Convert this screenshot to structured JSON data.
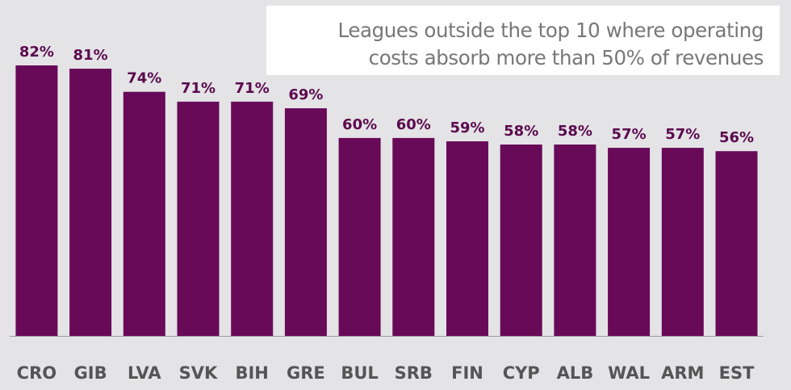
{
  "chart_data": {
    "type": "bar",
    "title": "Leagues outside the top 10 where operating costs absorb more than 50% of revenues",
    "title_lines": [
      "Leagues outside the top 10 where operating",
      "costs absorb more than 50% of revenues"
    ],
    "categories": [
      "CRO",
      "GIB",
      "LVA",
      "SVK",
      "BIH",
      "GRE",
      "BUL",
      "SRB",
      "FIN",
      "CYP",
      "ALB",
      "WAL",
      "ARM",
      "EST"
    ],
    "values": [
      82,
      81,
      74,
      71,
      71,
      69,
      60,
      60,
      59,
      58,
      58,
      57,
      57,
      56
    ],
    "value_labels": [
      "82%",
      "81%",
      "74%",
      "71%",
      "71%",
      "69%",
      "60%",
      "60%",
      "59%",
      "58%",
      "58%",
      "57%",
      "57%",
      "56%"
    ],
    "ylim": [
      0,
      82
    ],
    "grid": false,
    "xlabel": "",
    "ylabel": "",
    "colors": {
      "bar": "#680a58",
      "value_label": "#5b0a4e",
      "category_label": "#555555",
      "baseline": "#9a9a9a",
      "background": "#e4e3e6",
      "title_box": "#ffffff",
      "title_text": "#777777"
    }
  }
}
